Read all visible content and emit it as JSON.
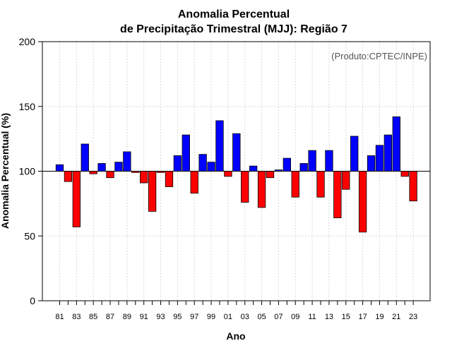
{
  "chart_data": {
    "type": "bar",
    "title": [
      "Anomalia Percentual",
      "de Precipitação Trimestral (MJJ): Região 7"
    ],
    "credit": "(Produto:CPTEC/INPE)",
    "xlabel": "Ano",
    "ylabel": "Anomalia Percentual (%)",
    "ylim": [
      0,
      200
    ],
    "yticks": [
      "0",
      "50",
      "100",
      "150",
      "200"
    ],
    "baseline": 100,
    "grid": true,
    "xtick_labels": [
      "81",
      "83",
      "85",
      "87",
      "89",
      "91",
      "93",
      "95",
      "97",
      "99",
      "01",
      "03",
      "05",
      "07",
      "09",
      "11",
      "13",
      "15",
      "17",
      "19",
      "21",
      "23"
    ],
    "colors": {
      "above": "#0000ff",
      "below": "#ff0000",
      "baseline": "#000000",
      "grid": "#d9d9d9"
    },
    "categories": [
      "1981",
      "1982",
      "1983",
      "1984",
      "1985",
      "1986",
      "1987",
      "1988",
      "1989",
      "1990",
      "1991",
      "1992",
      "1993",
      "1994",
      "1995",
      "1996",
      "1997",
      "1998",
      "1999",
      "2000",
      "2001",
      "2002",
      "2003",
      "2004",
      "2005",
      "2006",
      "2007",
      "2008",
      "2009",
      "2010",
      "2011",
      "2012",
      "2013",
      "2014",
      "2015",
      "2016",
      "2017",
      "2018",
      "2019",
      "2020",
      "2021",
      "2022",
      "2023"
    ],
    "values": [
      105,
      92,
      57,
      121,
      98,
      106,
      95,
      107,
      115,
      99,
      91,
      69,
      99,
      88,
      112,
      128,
      83,
      113,
      107,
      139,
      96,
      129,
      76,
      104,
      72,
      95,
      101,
      110,
      80,
      106,
      116,
      80,
      116,
      64,
      86,
      127,
      53,
      112,
      120,
      128,
      142,
      96,
      77
    ]
  }
}
